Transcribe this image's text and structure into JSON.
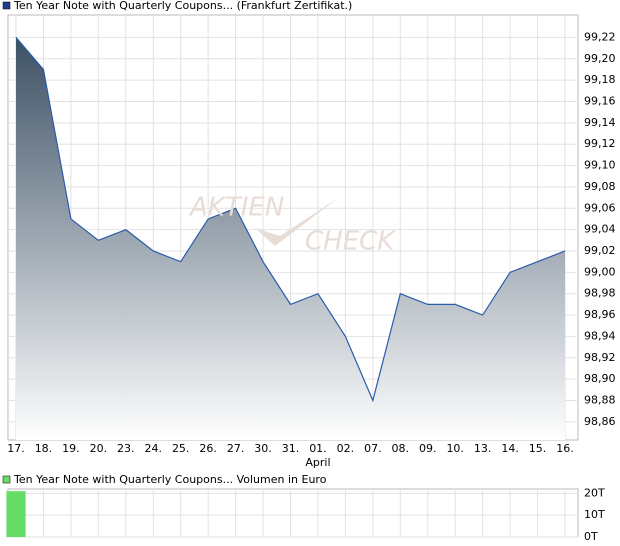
{
  "chart_data": [
    {
      "type": "area",
      "series": [
        {
          "name": "Ten Year Note with Quarterly Coupons... (Frankfurt Zertifikat.)",
          "color": "#2a5caa",
          "values": [
            99.22,
            99.19,
            99.05,
            99.03,
            99.04,
            99.02,
            99.01,
            99.05,
            99.06,
            99.01,
            98.97,
            98.98,
            98.94,
            98.88,
            98.98,
            98.97,
            98.97,
            98.96,
            99.0,
            99.01,
            99.02
          ]
        }
      ],
      "categories": [
        "17.",
        "18.",
        "19.",
        "20.",
        "23.",
        "24.",
        "25.",
        "26.",
        "27.",
        "30.",
        "31.",
        "01.",
        "02.",
        "07.",
        "08.",
        "09.",
        "10.",
        "13.",
        "14.",
        "15.",
        "16."
      ],
      "month_labels": [
        null,
        null,
        null,
        null,
        null,
        null,
        null,
        null,
        null,
        null,
        null,
        "April",
        null,
        null,
        null,
        null,
        null,
        null,
        null,
        null,
        null
      ],
      "watermark": [
        "AKTIEN",
        "CHECK"
      ],
      "ylim": [
        98.843,
        99.241
      ],
      "yticks": [
        {
          "value": 98.86,
          "label": "98,86"
        },
        {
          "value": 98.88,
          "label": "98,88"
        },
        {
          "value": 98.9,
          "label": "98,90"
        },
        {
          "value": 98.92,
          "label": "98,92"
        },
        {
          "value": 98.94,
          "label": "98,94"
        },
        {
          "value": 98.96,
          "label": "98,96"
        },
        {
          "value": 98.98,
          "label": "98,98"
        },
        {
          "value": 99.0,
          "label": "99,00"
        },
        {
          "value": 99.02,
          "label": "99,02"
        },
        {
          "value": 99.04,
          "label": "99,04"
        },
        {
          "value": 99.06,
          "label": "99,06"
        },
        {
          "value": 99.08,
          "label": "99,08"
        },
        {
          "value": 99.1,
          "label": "99,10"
        },
        {
          "value": 99.12,
          "label": "99,12"
        },
        {
          "value": 99.14,
          "label": "99,14"
        },
        {
          "value": 99.16,
          "label": "99,16"
        },
        {
          "value": 99.18,
          "label": "99,18"
        },
        {
          "value": 99.2,
          "label": "99,20"
        },
        {
          "value": 99.22,
          "label": "99,22"
        }
      ],
      "grid": true
    },
    {
      "type": "bar",
      "series": [
        {
          "name": "Ten Year Note with Quarterly Coupons... Volumen in Euro",
          "color": "#66dd66",
          "values": [
            21,
            0,
            0,
            0,
            0,
            0,
            0,
            0,
            0,
            0,
            0,
            0,
            0,
            0,
            0,
            0,
            0,
            0,
            0,
            0,
            0
          ]
        }
      ],
      "ylim": [
        0,
        22
      ],
      "yticks": [
        {
          "value": 0,
          "label": "0T"
        },
        {
          "value": 10,
          "label": "10T"
        },
        {
          "value": 20,
          "label": "20T"
        }
      ],
      "grid": true
    }
  ]
}
